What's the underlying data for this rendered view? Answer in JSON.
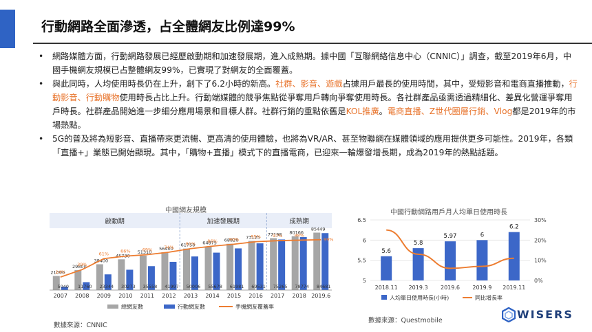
{
  "title": "行動網路全面滲透，占全體網友比例達99%",
  "bullets": [
    [
      {
        "t": "網路媒體方面，行動網路發展已經歷啟動期和加速發展期，進入成熟期。據中國「互聯網絡信息中心（CNNIC）」調查，截至2019年6月，中國手機網友規模已占整體網友99%，已實現了對網友的全面覆蓋。",
        "hl": false
      }
    ],
    [
      {
        "t": "與此同時，人均使用時長仍在上升，創下了6.2小時的新高。",
        "hl": false
      },
      {
        "t": "社群、影音、遊戲",
        "hl": true
      },
      {
        "t": "占據用戶最長的使用時間，其中，受短影音和電商直播推動，",
        "hl": false
      },
      {
        "t": "行動影音、行動購物",
        "hl": true
      },
      {
        "t": "使用時長占比上升。行動端媒體的競爭焦點從爭奪用戶轉向爭奪使用時長。各社群產品亟需透過精細化、差異化營運爭奪用戶時長。社群產品開始進一步細分應用場景和目標人群。社群行銷的重點依舊是",
        "hl": false
      },
      {
        "t": "KOL推廣",
        "hl": true
      },
      {
        "t": "。",
        "hl": false
      },
      {
        "t": "電商直播、Z世代圈層行銷、Vlog",
        "hl": true
      },
      {
        "t": "都是2019年的市場熱點。",
        "hl": false
      }
    ],
    [
      {
        "t": "5G的普及將為短影音、直播帶來更流暢、更高清的使用體驗，也將為VR/AR、甚至物聯網在媒體領域的應用提供更多可能性。2019年，各類「直播+」業態已開始顯現。其中，「購物+直播」模式下的直播電商，已迎來一輪爆發增長期，成為2019年的熱點話題。",
        "hl": false
      }
    ]
  ],
  "bullet_symbol": "•",
  "colors": {
    "accent": "#2f63c4",
    "highlight": "#e8742c",
    "grey_bar": "#a6a6a6",
    "blue_bar": "#3c67c8",
    "orange_line": "#ed7d31"
  },
  "chart_data": [
    {
      "type": "bar",
      "title": "中國網友規模",
      "categories": [
        "2007",
        "2008",
        "2009",
        "2010",
        "2011",
        "2012",
        "2013",
        "2014",
        "2015",
        "2016",
        "2017",
        "2018",
        "2019.6"
      ],
      "phases": [
        "啟動期",
        "加速發展期",
        "成熟期"
      ],
      "series": [
        {
          "name": "總網友數",
          "values": [
            21000,
            29800,
            38400,
            45730,
            51310,
            56400,
            61758,
            64875,
            68826,
            73125,
            77198,
            80166,
            85449
          ],
          "labels": [
            "21000",
            "29800",
            "38400",
            "45730",
            "51310",
            "56400",
            "61758",
            "64875",
            "68826",
            "73125",
            "77198",
            "80166",
            "85449"
          ]
        },
        {
          "name": "行動網友數",
          "values": [
            5040,
            11760,
            23344,
            30273,
            35558,
            41997,
            50006,
            55678,
            61981,
            69531,
            75265,
            78774,
            84681
          ],
          "labels": [
            "5040",
            "11760",
            "23344",
            "30273",
            "35558",
            "41997",
            "50006",
            "55678",
            "61981",
            "69531",
            "75265",
            "78774",
            "84681"
          ]
        },
        {
          "name": "手機網友覆蓋率",
          "values": [
            24,
            39,
            61,
            66,
            69,
            74,
            81,
            86,
            90,
            95,
            97,
            98,
            99
          ],
          "labels": [
            "24%",
            "39%",
            "61%",
            "66%",
            "69%",
            "74%",
            "81%",
            "86%",
            "90%",
            "95%",
            "97%",
            "98%",
            "99%"
          ]
        }
      ],
      "source": "數據來源：CNNIC"
    },
    {
      "type": "bar",
      "title": "中國行動網路用戶月人均單日使用時長",
      "categories": [
        "2018.11",
        "2019.3",
        "2019.6",
        "2019.9",
        "2019.11"
      ],
      "ylim": [
        5,
        6.5
      ],
      "y2lim": [
        0,
        30
      ],
      "yticks": [
        "5",
        "5.5",
        "6",
        "6.5"
      ],
      "y2ticks": [
        "0%",
        "10%",
        "20%",
        "30%"
      ],
      "series": [
        {
          "name": "人均單日使用時長(小時)",
          "values": [
            5.6,
            5.8,
            5.97,
            6,
            6.2
          ],
          "labels": [
            "5.6",
            "5.8",
            "5.97",
            "6",
            "6.2"
          ]
        },
        {
          "name": "同比增長率",
          "values": [
            25,
            13,
            6,
            7,
            11
          ]
        }
      ],
      "source": "數據來源：Questmobile"
    }
  ],
  "logo": {
    "text": "WISERS"
  }
}
